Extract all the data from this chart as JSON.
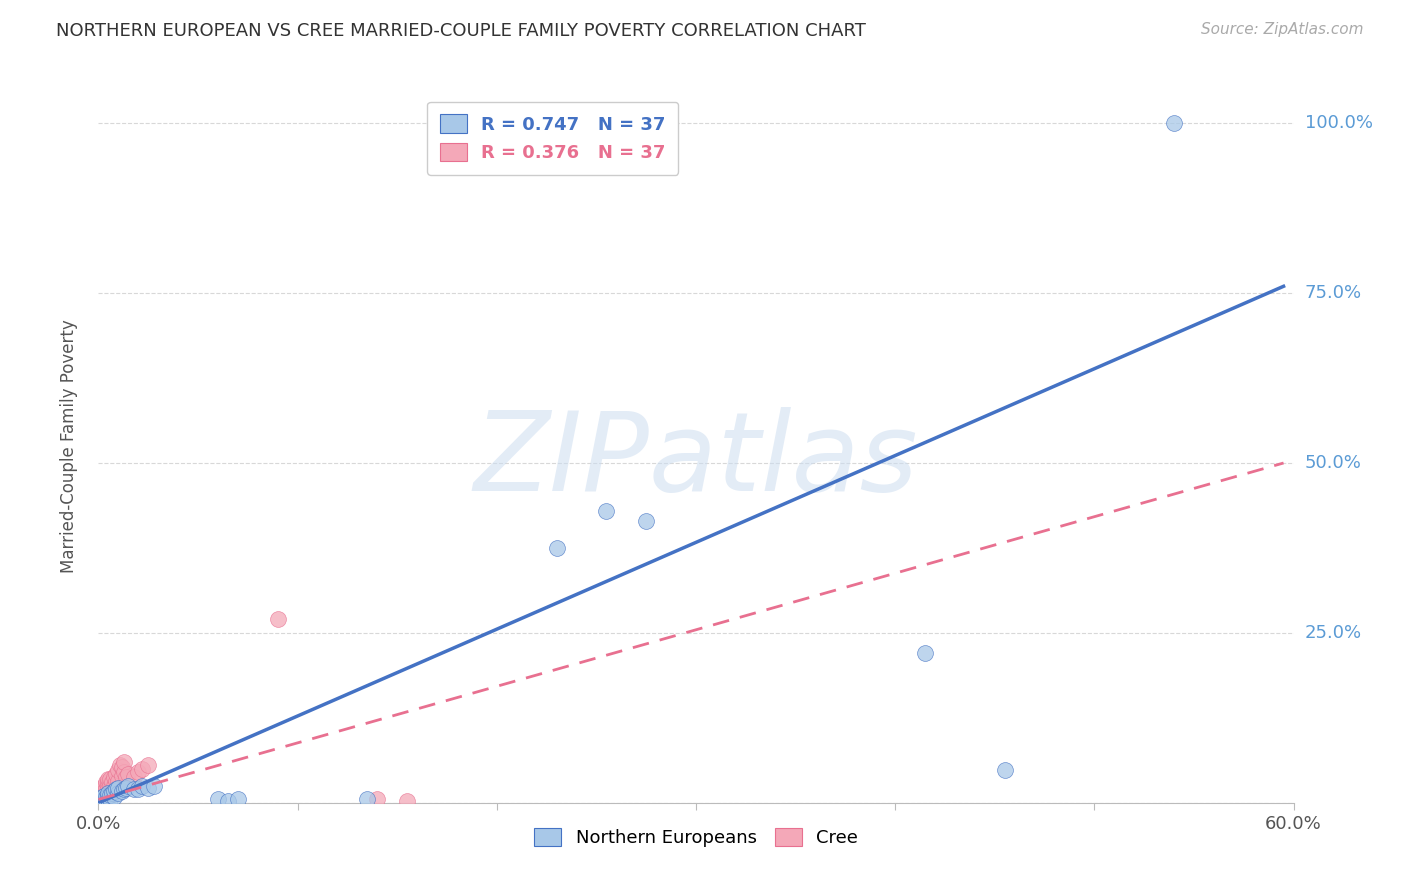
{
  "title": "NORTHERN EUROPEAN VS CREE MARRIED-COUPLE FAMILY POVERTY CORRELATION CHART",
  "source": "Source: ZipAtlas.com",
  "ylabel": "Married-Couple Family Poverty",
  "watermark": "ZIPatlas",
  "xlim": [
    0.0,
    0.6
  ],
  "ylim": [
    0.0,
    1.05
  ],
  "xticks": [
    0.0,
    0.1,
    0.2,
    0.3,
    0.4,
    0.5,
    0.6
  ],
  "xticklabels": [
    "0.0%",
    "",
    "",
    "",
    "",
    "",
    "60.0%"
  ],
  "ytick_positions": [
    0.0,
    0.25,
    0.5,
    0.75,
    1.0
  ],
  "yticklabels": [
    "",
    "25.0%",
    "50.0%",
    "75.0%",
    "100.0%"
  ],
  "blue_color": "#a8c8e8",
  "pink_color": "#f4a8b8",
  "blue_line_color": "#4472c4",
  "pink_line_color": "#e87090",
  "blue_scatter": [
    [
      0.001,
      0.005
    ],
    [
      0.002,
      0.003
    ],
    [
      0.002,
      0.008
    ],
    [
      0.003,
      0.005
    ],
    [
      0.003,
      0.01
    ],
    [
      0.004,
      0.004
    ],
    [
      0.004,
      0.008
    ],
    [
      0.005,
      0.006
    ],
    [
      0.005,
      0.01
    ],
    [
      0.005,
      0.015
    ],
    [
      0.006,
      0.005
    ],
    [
      0.006,
      0.012
    ],
    [
      0.007,
      0.015
    ],
    [
      0.008,
      0.008
    ],
    [
      0.008,
      0.018
    ],
    [
      0.009,
      0.02
    ],
    [
      0.01,
      0.015
    ],
    [
      0.01,
      0.022
    ],
    [
      0.012,
      0.018
    ],
    [
      0.013,
      0.02
    ],
    [
      0.014,
      0.022
    ],
    [
      0.015,
      0.025
    ],
    [
      0.018,
      0.02
    ],
    [
      0.02,
      0.02
    ],
    [
      0.022,
      0.025
    ],
    [
      0.025,
      0.022
    ],
    [
      0.028,
      0.025
    ],
    [
      0.06,
      0.005
    ],
    [
      0.065,
      0.003
    ],
    [
      0.07,
      0.005
    ],
    [
      0.23,
      0.375
    ],
    [
      0.255,
      0.43
    ],
    [
      0.275,
      0.415
    ],
    [
      0.415,
      0.22
    ],
    [
      0.455,
      0.048
    ],
    [
      0.54,
      1.0
    ],
    [
      0.135,
      0.005
    ]
  ],
  "pink_scatter": [
    [
      0.001,
      0.01
    ],
    [
      0.002,
      0.012
    ],
    [
      0.002,
      0.02
    ],
    [
      0.003,
      0.008
    ],
    [
      0.003,
      0.018
    ],
    [
      0.003,
      0.025
    ],
    [
      0.004,
      0.015
    ],
    [
      0.004,
      0.022
    ],
    [
      0.004,
      0.03
    ],
    [
      0.005,
      0.025
    ],
    [
      0.005,
      0.03
    ],
    [
      0.005,
      0.035
    ],
    [
      0.006,
      0.02
    ],
    [
      0.006,
      0.028
    ],
    [
      0.006,
      0.035
    ],
    [
      0.007,
      0.022
    ],
    [
      0.007,
      0.03
    ],
    [
      0.008,
      0.025
    ],
    [
      0.008,
      0.038
    ],
    [
      0.009,
      0.032
    ],
    [
      0.009,
      0.042
    ],
    [
      0.01,
      0.032
    ],
    [
      0.01,
      0.048
    ],
    [
      0.011,
      0.055
    ],
    [
      0.012,
      0.04
    ],
    [
      0.012,
      0.052
    ],
    [
      0.013,
      0.045
    ],
    [
      0.013,
      0.06
    ],
    [
      0.014,
      0.038
    ],
    [
      0.015,
      0.042
    ],
    [
      0.018,
      0.038
    ],
    [
      0.02,
      0.045
    ],
    [
      0.022,
      0.05
    ],
    [
      0.025,
      0.055
    ],
    [
      0.09,
      0.27
    ],
    [
      0.14,
      0.005
    ],
    [
      0.155,
      0.003
    ]
  ],
  "background_color": "#ffffff",
  "grid_color": "#d8d8d8",
  "tick_label_color_right": "#5b9bd5",
  "legend_blue_label": "R = 0.747   N = 37",
  "legend_pink_label": "R = 0.376   N = 37",
  "blue_line_x": [
    0.0,
    0.595
  ],
  "blue_line_y": [
    0.0,
    0.76
  ],
  "pink_line_x": [
    0.0,
    0.595
  ],
  "pink_line_y": [
    0.005,
    0.5
  ]
}
